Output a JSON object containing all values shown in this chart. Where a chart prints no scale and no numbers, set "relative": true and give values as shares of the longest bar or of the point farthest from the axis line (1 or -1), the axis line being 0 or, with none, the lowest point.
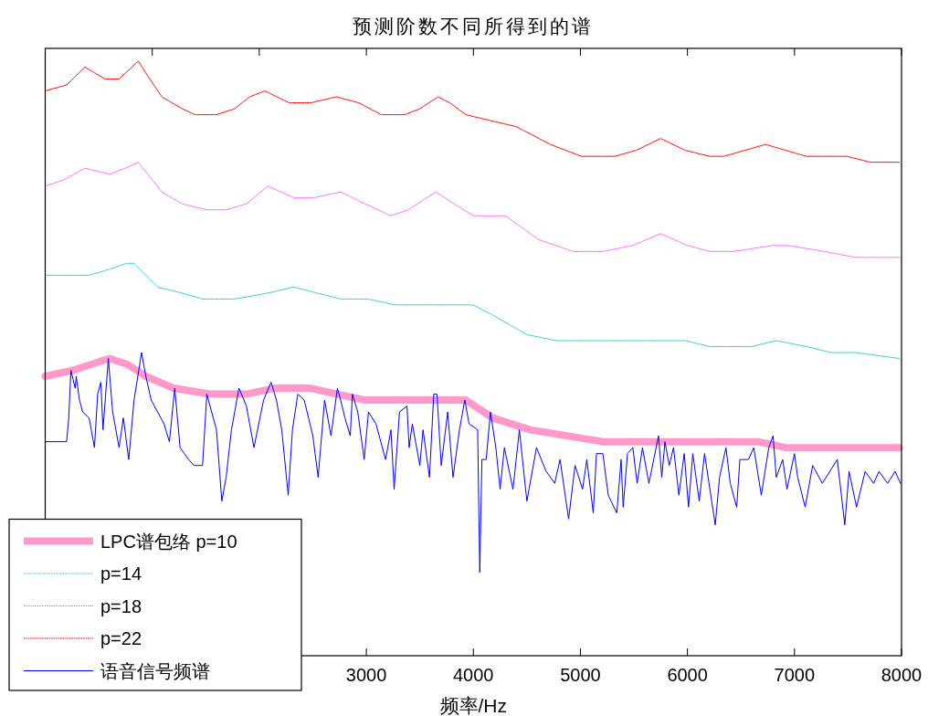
{
  "chart_data": {
    "type": "line",
    "title": "预测阶数不同所得到的谱",
    "xlabel": "频率/Hz",
    "relative": true,
    "legend": "bottom left",
    "xlim": [
      0,
      8000
    ],
    "xticks": [
      {
        "value": 1000,
        "label": null
      },
      {
        "value": 2000,
        "label": null
      },
      3000,
      4000,
      5000,
      6000,
      7000,
      8000
    ],
    "series": [
      {
        "name": "LPC谱包络 p=10",
        "color": "#ff99cc",
        "x": [
          0,
          260,
          600,
          770,
          940,
          1200,
          1540,
          1880,
          2140,
          2480,
          2730,
          2990,
          3330,
          3590,
          3760,
          3930,
          4180,
          4530,
          4870,
          5210,
          5550,
          5890,
          6060,
          6400,
          6660,
          6920,
          7260,
          7600,
          7980
        ],
        "values": [
          0.47,
          0.48,
          0.5,
          0.49,
          0.47,
          0.45,
          0.44,
          0.44,
          0.45,
          0.45,
          0.44,
          0.43,
          0.43,
          0.43,
          0.43,
          0.43,
          0.4,
          0.38,
          0.37,
          0.36,
          0.36,
          0.36,
          0.36,
          0.36,
          0.36,
          0.35,
          0.35,
          0.35,
          0.35
        ]
      },
      {
        "name": "p=14",
        "color": "#33cccc",
        "line_style": "dotted",
        "x": [
          0,
          200,
          410,
          600,
          760,
          830,
          1050,
          1280,
          1470,
          1770,
          2080,
          2320,
          2540,
          2760,
          3020,
          3270,
          3600,
          3870,
          4000,
          4210,
          4500,
          4780,
          4950,
          5490,
          5980,
          6210,
          6400,
          6600,
          6830,
          7110,
          7340,
          7570,
          7980
        ],
        "values": [
          0.64,
          0.64,
          0.64,
          0.65,
          0.66,
          0.66,
          0.62,
          0.61,
          0.6,
          0.6,
          0.61,
          0.62,
          0.61,
          0.6,
          0.6,
          0.59,
          0.59,
          0.59,
          0.59,
          0.57,
          0.54,
          0.53,
          0.53,
          0.53,
          0.53,
          0.52,
          0.52,
          0.52,
          0.53,
          0.52,
          0.51,
          0.51,
          0.5
        ]
      },
      {
        "name": "p=18",
        "color": "#ff66ff",
        "line_style": "dotted",
        "x": [
          0,
          170,
          370,
          600,
          750,
          870,
          1090,
          1280,
          1510,
          1690,
          1880,
          2080,
          2330,
          2500,
          2760,
          2990,
          3230,
          3390,
          3650,
          3820,
          4000,
          4300,
          4610,
          4930,
          5210,
          5490,
          5750,
          6000,
          6210,
          6430,
          6800,
          6940,
          7280,
          7570,
          7980
        ],
        "values": [
          0.79,
          0.8,
          0.82,
          0.81,
          0.82,
          0.83,
          0.78,
          0.76,
          0.75,
          0.75,
          0.76,
          0.79,
          0.77,
          0.77,
          0.78,
          0.76,
          0.74,
          0.75,
          0.78,
          0.76,
          0.74,
          0.74,
          0.7,
          0.68,
          0.68,
          0.69,
          0.71,
          0.69,
          0.68,
          0.68,
          0.69,
          0.69,
          0.68,
          0.67,
          0.67
        ]
      },
      {
        "name": "p=22",
        "color": "#ff0000",
        "line_style": "dotted",
        "x": [
          0,
          200,
          370,
          560,
          690,
          870,
          940,
          1090,
          1280,
          1400,
          1600,
          1770,
          1910,
          2050,
          2280,
          2480,
          2720,
          2930,
          3140,
          3360,
          3500,
          3670,
          3780,
          3930,
          4160,
          4400,
          4720,
          5010,
          5320,
          5520,
          5750,
          5980,
          6210,
          6340,
          6730,
          6920,
          7110,
          7490,
          7710,
          7980
        ],
        "values": [
          0.95,
          0.96,
          0.99,
          0.97,
          0.97,
          1.0,
          0.98,
          0.94,
          0.92,
          0.91,
          0.91,
          0.92,
          0.94,
          0.95,
          0.93,
          0.93,
          0.94,
          0.93,
          0.91,
          0.91,
          0.92,
          0.94,
          0.93,
          0.91,
          0.9,
          0.89,
          0.86,
          0.84,
          0.84,
          0.85,
          0.87,
          0.85,
          0.84,
          0.84,
          0.86,
          0.85,
          0.84,
          0.84,
          0.83,
          0.83
        ]
      },
      {
        "name": "语音信号频谱",
        "color": "#0000ff",
        "x": [
          0,
          200,
          220,
          240,
          280,
          290,
          320,
          350,
          410,
          460,
          490,
          520,
          540,
          590,
          630,
          690,
          730,
          780,
          830,
          900,
          940,
          990,
          1050,
          1110,
          1160,
          1210,
          1260,
          1340,
          1390,
          1470,
          1510,
          1600,
          1650,
          1690,
          1740,
          1810,
          1880,
          1950,
          2040,
          2110,
          2160,
          2210,
          2270,
          2310,
          2360,
          2420,
          2500,
          2550,
          2610,
          2670,
          2730,
          2760,
          2800,
          2850,
          2870,
          2920,
          2980,
          3020,
          3090,
          3180,
          3230,
          3260,
          3310,
          3380,
          3400,
          3430,
          3500,
          3530,
          3590,
          3630,
          3660,
          3700,
          3760,
          3810,
          3870,
          3920,
          3960,
          4040,
          4060,
          4080,
          4120,
          4160,
          4210,
          4250,
          4290,
          4370,
          4430,
          4500,
          4590,
          4680,
          4760,
          4810,
          4890,
          4950,
          5020,
          5060,
          5120,
          5150,
          5210,
          5260,
          5340,
          5380,
          5400,
          5440,
          5490,
          5530,
          5580,
          5640,
          5730,
          5760,
          5790,
          5830,
          5870,
          5920,
          5970,
          6010,
          6050,
          6110,
          6160,
          6260,
          6300,
          6360,
          6400,
          6460,
          6490,
          6570,
          6620,
          6690,
          6760,
          6800,
          6830,
          6890,
          6930,
          7000,
          7030,
          7100,
          7170,
          7260,
          7400,
          7470,
          7510,
          7580,
          7660,
          7740,
          7790,
          7870,
          7940,
          7990
        ],
        "values": [
          0.36,
          0.36,
          0.4,
          0.48,
          0.45,
          0.47,
          0.43,
          0.41,
          0.4,
          0.35,
          0.44,
          0.46,
          0.38,
          0.5,
          0.41,
          0.35,
          0.4,
          0.33,
          0.43,
          0.51,
          0.47,
          0.43,
          0.41,
          0.39,
          0.36,
          0.45,
          0.35,
          0.33,
          0.32,
          0.32,
          0.44,
          0.38,
          0.26,
          0.3,
          0.38,
          0.45,
          0.42,
          0.35,
          0.43,
          0.46,
          0.43,
          0.38,
          0.27,
          0.38,
          0.44,
          0.43,
          0.37,
          0.3,
          0.43,
          0.37,
          0.45,
          0.43,
          0.4,
          0.37,
          0.44,
          0.41,
          0.33,
          0.41,
          0.39,
          0.33,
          0.38,
          0.28,
          0.41,
          0.42,
          0.35,
          0.39,
          0.32,
          0.38,
          0.3,
          0.44,
          0.44,
          0.32,
          0.41,
          0.3,
          0.38,
          0.43,
          0.39,
          0.38,
          0.14,
          0.33,
          0.33,
          0.41,
          0.35,
          0.28,
          0.35,
          0.28,
          0.38,
          0.26,
          0.35,
          0.31,
          0.29,
          0.33,
          0.23,
          0.32,
          0.28,
          0.33,
          0.24,
          0.34,
          0.34,
          0.27,
          0.24,
          0.33,
          0.25,
          0.34,
          0.35,
          0.29,
          0.35,
          0.29,
          0.37,
          0.3,
          0.36,
          0.32,
          0.35,
          0.27,
          0.34,
          0.25,
          0.34,
          0.26,
          0.34,
          0.22,
          0.3,
          0.35,
          0.29,
          0.25,
          0.33,
          0.33,
          0.35,
          0.27,
          0.35,
          0.37,
          0.3,
          0.33,
          0.28,
          0.34,
          0.3,
          0.25,
          0.32,
          0.29,
          0.33,
          0.22,
          0.31,
          0.25,
          0.31,
          0.29,
          0.31,
          0.29,
          0.31,
          0.29
        ]
      }
    ]
  }
}
